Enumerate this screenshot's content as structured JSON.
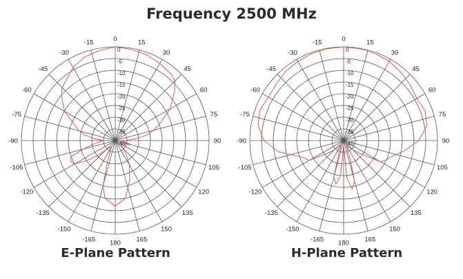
{
  "title": "Frequency 2500 MHz",
  "colors": {
    "pattern": "#e05555",
    "grid": "#555555",
    "text": "#2b2b2b"
  },
  "chart_data": [
    {
      "type": "polar",
      "title": "E-Plane Pattern",
      "angle_ticks": [
        "0",
        "15",
        "30",
        "45",
        "60",
        "75",
        "90",
        "105",
        "120",
        "135",
        "150",
        "165",
        "180",
        "-165",
        "-150",
        "-135",
        "-120",
        "-105",
        "-90",
        "-75",
        "-60",
        "-45",
        "-30",
        "-15"
      ],
      "radial_ticks": [
        "0",
        "-5",
        "-10",
        "-15",
        "-20",
        "-25",
        "-30",
        "-35",
        "-40"
      ],
      "rlim": [
        -40,
        0
      ],
      "series": [
        {
          "theta": [
            -180,
            -170,
            -165,
            -160,
            -150,
            -140,
            -130,
            -125,
            -120,
            -115,
            -110,
            -105,
            -100,
            -95,
            -90,
            -85,
            -80,
            -75,
            -70,
            -60,
            -50,
            -45,
            -40,
            -30,
            -20,
            -10,
            0,
            10,
            20,
            30,
            40,
            45,
            50,
            60,
            70,
            75,
            80,
            85,
            90,
            95,
            100,
            105,
            110,
            120,
            130,
            140,
            150,
            160,
            170,
            180
          ],
          "r": [
            -12,
            -15,
            -20,
            -30,
            -37,
            -36,
            -30,
            -25,
            -20,
            -19,
            -20,
            -26,
            -30,
            -33,
            -35,
            -31,
            -27,
            -24,
            -22,
            -15,
            -10,
            -8,
            -7,
            -4,
            -2,
            -1,
            0,
            -0.5,
            -1,
            -2,
            -3,
            -4,
            -7,
            -13,
            -20,
            -23,
            -26,
            -31,
            -36,
            -37,
            -35,
            -33,
            -36,
            -38,
            -36,
            -33,
            -28,
            -22,
            -15,
            -12
          ]
        }
      ]
    },
    {
      "type": "polar",
      "title": "H-Plane Pattern",
      "angle_ticks": [
        "0",
        "15",
        "30",
        "45",
        "60",
        "75",
        "90",
        "105",
        "120",
        "135",
        "150",
        "165",
        "180",
        "-165",
        "-150",
        "-135",
        "-120",
        "-105",
        "-90",
        "-75",
        "-60",
        "-45",
        "-30",
        "-15"
      ],
      "radial_ticks": [
        "0",
        "-5",
        "-10",
        "-15",
        "-20",
        "-25",
        "-30",
        "-35",
        "-40"
      ],
      "rlim": [
        -40,
        0
      ],
      "series": [
        {
          "theta": [
            -180,
            -175,
            -170,
            -165,
            -160,
            -150,
            -140,
            -130,
            -120,
            -115,
            -110,
            -100,
            -90,
            -80,
            -70,
            -60,
            -50,
            -40,
            -30,
            -20,
            -10,
            0,
            10,
            20,
            30,
            40,
            50,
            60,
            70,
            80,
            90,
            100,
            110,
            115,
            120,
            130,
            140,
            150,
            160,
            165,
            170,
            175,
            180
          ],
          "r": [
            -38,
            -25,
            -21,
            -24,
            -34,
            -38,
            -36,
            -32,
            -23,
            -22,
            -20,
            -12,
            -6,
            -3,
            -2,
            -3,
            -2.5,
            -1.5,
            -1,
            -0.5,
            -0.2,
            0,
            -0.2,
            -0.5,
            -1,
            -2,
            -3,
            -4,
            -3,
            -4,
            -8,
            -14,
            -19,
            -20,
            -22,
            -32,
            -36,
            -38,
            -32,
            -22,
            -19,
            -24,
            -38
          ]
        }
      ]
    }
  ]
}
